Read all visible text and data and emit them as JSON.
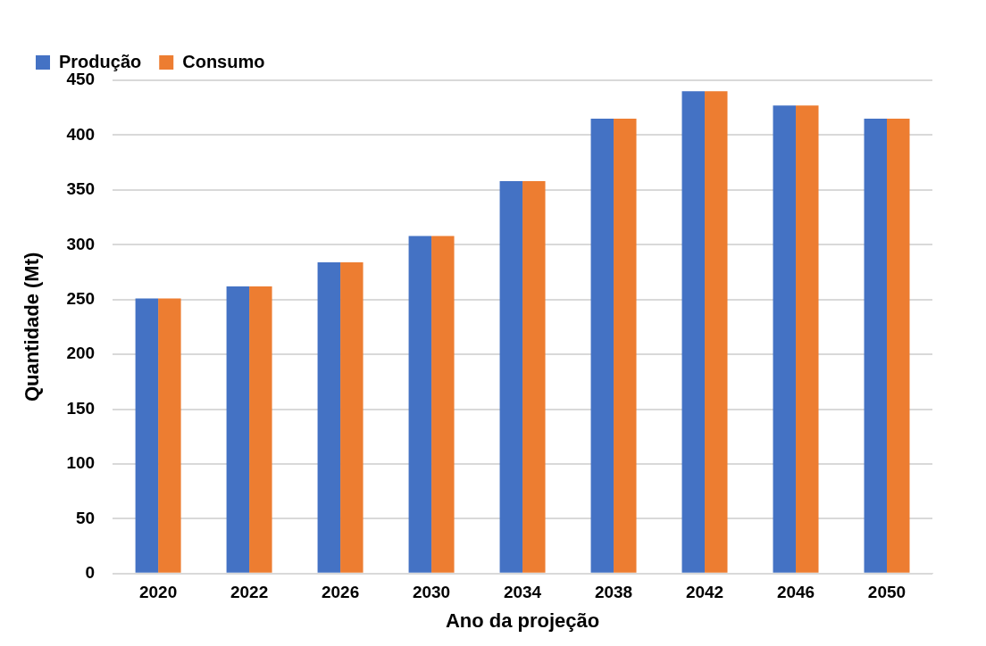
{
  "chart_data": {
    "type": "bar",
    "xlabel": "Ano da projeção",
    "ylabel": "Quantidade (Mt)",
    "categories": [
      "2020",
      "2022",
      "2026",
      "2030",
      "2034",
      "2038",
      "2042",
      "2046",
      "2050"
    ],
    "series": [
      {
        "name": "Produção",
        "color": "#4472c4",
        "values": [
          251,
          262,
          284,
          308,
          358,
          415,
          440,
          427,
          415
        ]
      },
      {
        "name": "Consumo",
        "color": "#ed7d31",
        "values": [
          251,
          262,
          284,
          308,
          358,
          415,
          440,
          427,
          415
        ]
      }
    ],
    "ylim": [
      0,
      450
    ],
    "yticks": [
      0,
      50,
      100,
      150,
      200,
      250,
      300,
      350,
      400,
      450
    ],
    "grid": "y",
    "legend": "top left"
  }
}
